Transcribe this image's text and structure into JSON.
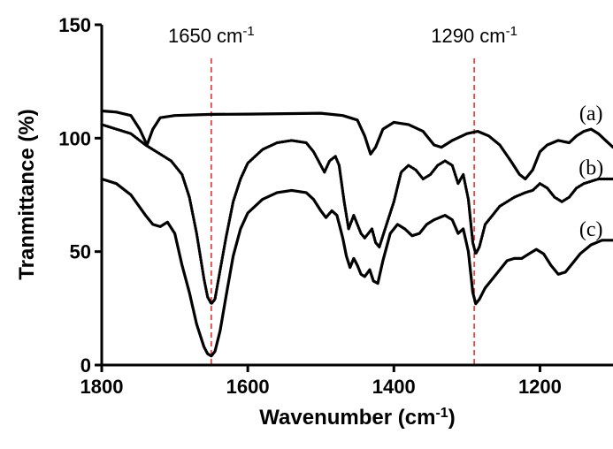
{
  "chart_data": {
    "type": "line",
    "title": "",
    "xlabel_main": "Wavenumber (cm",
    "xlabel_sup": "-1",
    "xlabel_close": ")",
    "ylabel": "Tranmittance (%)",
    "xlim": [
      1800,
      1100
    ],
    "x_reversed": true,
    "ylim": [
      0,
      150
    ],
    "x_ticks": [
      1800,
      1600,
      1400,
      1200
    ],
    "y_ticks": [
      0,
      50,
      100,
      150
    ],
    "grid": false,
    "reference_lines": [
      {
        "x": 1650,
        "label_main": "1650 cm",
        "label_sup": "-1",
        "color": "#e8312c"
      },
      {
        "x": 1290,
        "label_main": "1290 cm",
        "label_sup": "-1",
        "color": "#e8312c"
      }
    ],
    "series": [
      {
        "label": "(a)",
        "label_at": [
          1130,
          111
        ],
        "points": [
          [
            1800,
            112
          ],
          [
            1780,
            111.5
          ],
          [
            1760,
            110
          ],
          [
            1748,
            104
          ],
          [
            1738,
            97
          ],
          [
            1730,
            104
          ],
          [
            1720,
            109
          ],
          [
            1700,
            110
          ],
          [
            1650,
            110.5
          ],
          [
            1600,
            110.6
          ],
          [
            1550,
            110.8
          ],
          [
            1500,
            111
          ],
          [
            1470,
            110
          ],
          [
            1450,
            108
          ],
          [
            1440,
            101
          ],
          [
            1432,
            93
          ],
          [
            1425,
            96
          ],
          [
            1415,
            104
          ],
          [
            1400,
            107
          ],
          [
            1380,
            106
          ],
          [
            1360,
            103
          ],
          [
            1345,
            97
          ],
          [
            1335,
            96
          ],
          [
            1320,
            99
          ],
          [
            1300,
            102
          ],
          [
            1285,
            103
          ],
          [
            1270,
            101
          ],
          [
            1255,
            97
          ],
          [
            1240,
            90
          ],
          [
            1228,
            84
          ],
          [
            1220,
            82
          ],
          [
            1210,
            86
          ],
          [
            1200,
            94
          ],
          [
            1190,
            97
          ],
          [
            1175,
            99
          ],
          [
            1160,
            98
          ],
          [
            1150,
            101
          ],
          [
            1140,
            103
          ],
          [
            1130,
            104
          ],
          [
            1120,
            102
          ],
          [
            1110,
            99
          ],
          [
            1100,
            96
          ]
        ]
      },
      {
        "label": "(b)",
        "label_at": [
          1130,
          87
        ],
        "points": [
          [
            1800,
            106
          ],
          [
            1780,
            104
          ],
          [
            1760,
            102
          ],
          [
            1740,
            97
          ],
          [
            1720,
            93
          ],
          [
            1705,
            90
          ],
          [
            1690,
            84
          ],
          [
            1680,
            74
          ],
          [
            1670,
            58
          ],
          [
            1660,
            38
          ],
          [
            1655,
            30
          ],
          [
            1650,
            27
          ],
          [
            1645,
            29
          ],
          [
            1640,
            38
          ],
          [
            1630,
            56
          ],
          [
            1620,
            72
          ],
          [
            1610,
            82
          ],
          [
            1600,
            89
          ],
          [
            1580,
            95
          ],
          [
            1560,
            98
          ],
          [
            1540,
            99
          ],
          [
            1520,
            98
          ],
          [
            1510,
            94
          ],
          [
            1500,
            88
          ],
          [
            1495,
            85
          ],
          [
            1488,
            90
          ],
          [
            1480,
            92
          ],
          [
            1475,
            88
          ],
          [
            1468,
            72
          ],
          [
            1462,
            60
          ],
          [
            1455,
            66
          ],
          [
            1450,
            62
          ],
          [
            1445,
            58
          ],
          [
            1440,
            56
          ],
          [
            1430,
            60
          ],
          [
            1425,
            54
          ],
          [
            1420,
            52
          ],
          [
            1410,
            62
          ],
          [
            1400,
            72
          ],
          [
            1390,
            85
          ],
          [
            1380,
            88
          ],
          [
            1370,
            86
          ],
          [
            1360,
            82
          ],
          [
            1350,
            84
          ],
          [
            1340,
            88
          ],
          [
            1330,
            90
          ],
          [
            1320,
            88
          ],
          [
            1312,
            80
          ],
          [
            1305,
            84
          ],
          [
            1298,
            73
          ],
          [
            1292,
            54
          ],
          [
            1288,
            49
          ],
          [
            1283,
            52
          ],
          [
            1275,
            62
          ],
          [
            1265,
            66
          ],
          [
            1255,
            70
          ],
          [
            1245,
            72
          ],
          [
            1235,
            74
          ],
          [
            1220,
            76
          ],
          [
            1210,
            77
          ],
          [
            1200,
            80
          ],
          [
            1190,
            78
          ],
          [
            1180,
            74
          ],
          [
            1170,
            72
          ],
          [
            1160,
            74
          ],
          [
            1150,
            78
          ],
          [
            1140,
            80
          ],
          [
            1120,
            82
          ],
          [
            1100,
            82
          ]
        ]
      },
      {
        "label": "(c)",
        "label_at": [
          1130,
          60
        ],
        "points": [
          [
            1800,
            82
          ],
          [
            1780,
            80
          ],
          [
            1760,
            75
          ],
          [
            1740,
            66
          ],
          [
            1730,
            62
          ],
          [
            1720,
            61
          ],
          [
            1710,
            63
          ],
          [
            1700,
            58
          ],
          [
            1690,
            44
          ],
          [
            1680,
            32
          ],
          [
            1670,
            18
          ],
          [
            1660,
            8
          ],
          [
            1655,
            5
          ],
          [
            1650,
            4
          ],
          [
            1645,
            6
          ],
          [
            1638,
            15
          ],
          [
            1630,
            30
          ],
          [
            1620,
            48
          ],
          [
            1610,
            60
          ],
          [
            1600,
            67
          ],
          [
            1580,
            73
          ],
          [
            1560,
            76
          ],
          [
            1540,
            77
          ],
          [
            1520,
            76
          ],
          [
            1510,
            73
          ],
          [
            1500,
            68
          ],
          [
            1493,
            65
          ],
          [
            1485,
            68
          ],
          [
            1478,
            66
          ],
          [
            1470,
            56
          ],
          [
            1465,
            48
          ],
          [
            1460,
            43
          ],
          [
            1455,
            47
          ],
          [
            1450,
            44
          ],
          [
            1445,
            40
          ],
          [
            1440,
            39
          ],
          [
            1433,
            42
          ],
          [
            1428,
            37
          ],
          [
            1422,
            36
          ],
          [
            1415,
            46
          ],
          [
            1405,
            58
          ],
          [
            1395,
            62
          ],
          [
            1385,
            60
          ],
          [
            1375,
            57
          ],
          [
            1365,
            58
          ],
          [
            1355,
            62
          ],
          [
            1345,
            64
          ],
          [
            1330,
            66
          ],
          [
            1320,
            64
          ],
          [
            1312,
            58
          ],
          [
            1305,
            60
          ],
          [
            1298,
            50
          ],
          [
            1292,
            32
          ],
          [
            1288,
            27
          ],
          [
            1283,
            29
          ],
          [
            1275,
            34
          ],
          [
            1265,
            38
          ],
          [
            1255,
            42
          ],
          [
            1245,
            46
          ],
          [
            1235,
            47
          ],
          [
            1225,
            47
          ],
          [
            1215,
            49
          ],
          [
            1205,
            51
          ],
          [
            1195,
            49
          ],
          [
            1185,
            44
          ],
          [
            1175,
            40
          ],
          [
            1165,
            41
          ],
          [
            1155,
            45
          ],
          [
            1145,
            49
          ],
          [
            1130,
            53
          ],
          [
            1115,
            55
          ],
          [
            1100,
            55
          ]
        ]
      }
    ]
  }
}
